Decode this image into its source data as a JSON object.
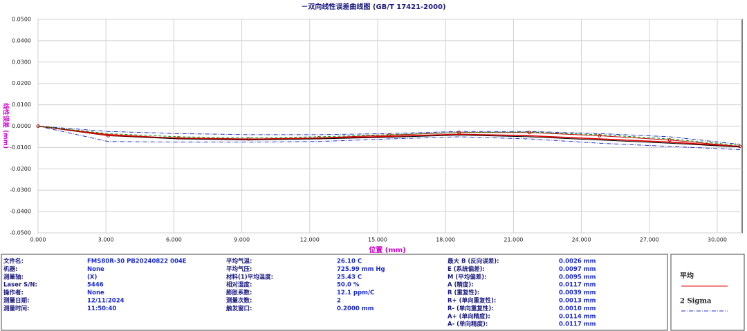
{
  "chart_data": {
    "type": "line",
    "title": "－双向线性误差曲线图  (GB/T 17421-2000)",
    "x_label": "位置 (mm)",
    "y_label": "线性误差 (mm)",
    "x": [
      0,
      3.1,
      6.2,
      9.3,
      12.4,
      15.5,
      18.6,
      21.7,
      24.8,
      27.9,
      31
    ],
    "series": [
      {
        "name": "平均",
        "color": "#e00000",
        "style": "solid",
        "values": [
          0,
          -0.004,
          -0.0058,
          -0.0062,
          -0.0058,
          -0.0048,
          -0.0038,
          -0.0045,
          -0.006,
          -0.0075,
          -0.0095
        ]
      },
      {
        "name": "2 Sigma",
        "color": "#2030d0",
        "style": "dashdot",
        "values": [
          0,
          -0.0025,
          -0.0035,
          -0.004,
          -0.004,
          -0.0035,
          -0.0025,
          -0.0025,
          -0.0035,
          -0.005,
          -0.0085
        ]
      },
      {
        "color": "#2030d0",
        "style": "dashdot",
        "values": [
          0,
          -0.0072,
          -0.0075,
          -0.0075,
          -0.0072,
          -0.006,
          -0.005,
          -0.006,
          -0.008,
          -0.0095,
          -0.011
        ]
      },
      {
        "color": "#000000",
        "style": "solid",
        "values": [
          0,
          -0.0045,
          -0.006,
          -0.0065,
          -0.006,
          -0.0052,
          -0.0042,
          -0.005,
          -0.0065,
          -0.008,
          -0.0098
        ]
      },
      {
        "color": "#c00000",
        "style": "marker",
        "values": [
          0,
          -0.0045,
          -0.0055,
          -0.006,
          -0.0055,
          -0.0042,
          -0.003,
          -0.003,
          -0.0045,
          -0.0065,
          -0.0095
        ]
      },
      {
        "color": "#009900",
        "style": "dashed",
        "values": [
          0,
          -0.0035,
          -0.005,
          -0.0055,
          -0.005,
          -0.004,
          -0.003,
          -0.0028,
          -0.004,
          -0.006,
          -0.009
        ]
      }
    ],
    "xlim": [
      0,
      31.1
    ],
    "ylim": [
      -0.05,
      0.05
    ],
    "xticks": [
      {
        "value": 0,
        "label": "0.000"
      },
      {
        "value": 3,
        "label": "3.000"
      },
      {
        "value": 6,
        "label": "6.000"
      },
      {
        "value": 9,
        "label": "9.000"
      },
      {
        "value": 12,
        "label": "12.000"
      },
      {
        "value": 15,
        "label": "15.000"
      },
      {
        "value": 18,
        "label": "18.000"
      },
      {
        "value": 21,
        "label": "21.000"
      },
      {
        "value": 24,
        "label": "24.000"
      },
      {
        "value": 27,
        "label": "27.000"
      },
      {
        "value": 30,
        "label": "30.000"
      }
    ],
    "yticks": [
      {
        "value": 0.05,
        "label": "0.0500"
      },
      {
        "value": 0.04,
        "label": "0.0400"
      },
      {
        "value": 0.03,
        "label": "0.0300"
      },
      {
        "value": 0.02,
        "label": "0.0200"
      },
      {
        "value": 0.01,
        "label": "0.0100"
      },
      {
        "value": 0,
        "label": "0.0000"
      },
      {
        "value": -0.01,
        "label": "-0.0100"
      },
      {
        "value": -0.02,
        "label": "-0.0200"
      },
      {
        "value": -0.03,
        "label": "-0.0300"
      },
      {
        "value": -0.04,
        "label": "-0.0400"
      },
      {
        "value": -0.05,
        "label": "-0.0500"
      }
    ],
    "grid": true,
    "legend": "right"
  },
  "info": {
    "columns": [
      [
        [
          "文件名:",
          "FMS80R-30 PB20240822 004E"
        ],
        [
          "机器:",
          "None"
        ],
        [
          "测量轴:",
          "(X)"
        ],
        [
          "Laser S/N:",
          "5446"
        ],
        [
          "操作者:",
          "None"
        ],
        [
          "测量日期:",
          "12/11/2024"
        ],
        [
          "测量时间:",
          "11:50:40"
        ]
      ],
      [
        [
          "平均气温:",
          "26.10 C"
        ],
        [
          "平均气压:",
          "725.99 mm Hg"
        ],
        [
          "材料(1)平均温度:",
          "25.43 C"
        ],
        [
          "相对湿度:",
          "50.0 %"
        ],
        [
          "膨胀系数:",
          "12.1 ppm/C"
        ],
        [
          "测量次数:",
          "2"
        ],
        [
          "触发窗口:",
          "0.2000 mm"
        ]
      ],
      [
        [
          "最大 B (反向误差):",
          "0.0026 mm"
        ],
        [
          "E (系统偏差):",
          "0.0097 mm"
        ],
        [
          "M (平均偏差):",
          "0.0095 mm"
        ],
        [
          "A (精度):",
          "0.0117 mm"
        ],
        [
          "R (重复性):",
          "0.0039 mm"
        ],
        [
          "R+ (单向重复性):",
          "0.0013 mm"
        ],
        [
          "R- (单向重复性):",
          "0.0010 mm"
        ],
        [
          "A+ (单向精度):",
          "0.0114 mm"
        ],
        [
          "A- (单向精度):",
          "0.0117 mm"
        ]
      ]
    ]
  }
}
